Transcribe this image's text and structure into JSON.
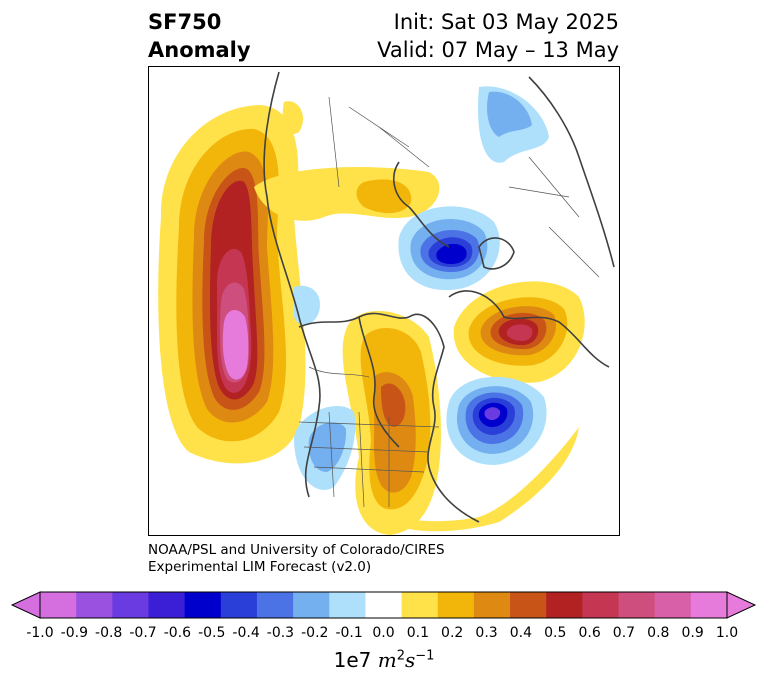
{
  "header": {
    "title_line1": "SF750",
    "title_line2": "Anomaly",
    "init": "Init: Sat 03 May 2025",
    "valid": "Valid: 07 May – 13 May"
  },
  "credit": {
    "line1": "NOAA/PSL and University of Colorado/CIRES",
    "line2": "Experimental LIM Forecast (v2.0)"
  },
  "colorbar": {
    "ticks": [
      "-1.0",
      "-0.9",
      "-0.8",
      "-0.7",
      "-0.6",
      "-0.5",
      "-0.4",
      "-0.3",
      "-0.2",
      "-0.1",
      "0.0",
      "0.1",
      "0.2",
      "0.3",
      "0.4",
      "0.5",
      "0.6",
      "0.7",
      "0.8",
      "0.9",
      "1.0"
    ],
    "colors": [
      "#d56fe0",
      "#9b51e0",
      "#6a3be0",
      "#3b1fd6",
      "#0000cd",
      "#2a3fd8",
      "#4b73e6",
      "#74b0f0",
      "#aee0fb",
      "#ffffff",
      "#ffe24a",
      "#f2b60a",
      "#de8a12",
      "#c95418",
      "#b22222",
      "#c43651",
      "#ce4f7d",
      "#d860a8",
      "#e77bdc"
    ],
    "extend_low_color": "#d56fe0",
    "extend_high_color": "#e77bdc",
    "unit_prefix": "1e7",
    "unit_m": "m",
    "unit_m_exp": "2",
    "unit_s": "s",
    "unit_s_exp": "−1"
  },
  "map": {
    "projection": "north-polar-stereographic",
    "features": [
      "coastlines",
      "country-borders",
      "us-state-borders"
    ]
  }
}
